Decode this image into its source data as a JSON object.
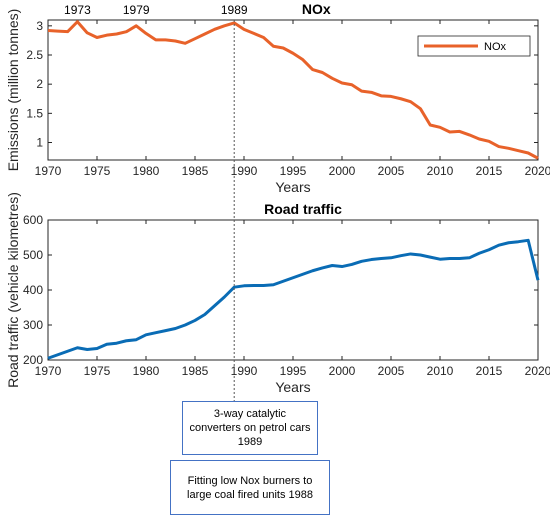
{
  "chart_data": [
    {
      "type": "line",
      "title": "NOx",
      "xlabel": "Years",
      "ylabel": "Emissions (million tonnes)",
      "xlim": [
        1970,
        2020
      ],
      "ylim": [
        0.7,
        3.1
      ],
      "xticks": [
        1970,
        1975,
        1980,
        1985,
        1990,
        1995,
        2000,
        2005,
        2010,
        2015,
        2020
      ],
      "yticks": [
        1,
        1.5,
        2,
        2.5,
        3
      ],
      "ytick_labels": [
        "1",
        "1.5",
        "2",
        "2.5",
        "3"
      ],
      "legend": "top-right",
      "grid": false,
      "color": "#e8622a",
      "annotations": [
        {
          "label": "1973",
          "x": 1973
        },
        {
          "label": "1979",
          "x": 1979
        },
        {
          "label": "1989",
          "x": 1989
        }
      ],
      "series": [
        {
          "name": "NOx",
          "x": [
            1970,
            1971,
            1972,
            1973,
            1974,
            1975,
            1976,
            1977,
            1978,
            1979,
            1980,
            1981,
            1982,
            1983,
            1984,
            1985,
            1986,
            1987,
            1988,
            1989,
            1990,
            1991,
            1992,
            1993,
            1994,
            1995,
            1996,
            1997,
            1998,
            1999,
            2000,
            2001,
            2002,
            2003,
            2004,
            2005,
            2006,
            2007,
            2008,
            2009,
            2010,
            2011,
            2012,
            2013,
            2014,
            2015,
            2016,
            2017,
            2018,
            2019,
            2020
          ],
          "values": [
            2.92,
            2.91,
            2.9,
            3.07,
            2.88,
            2.8,
            2.84,
            2.86,
            2.9,
            3.0,
            2.87,
            2.76,
            2.76,
            2.74,
            2.7,
            2.78,
            2.86,
            2.94,
            3.0,
            3.05,
            2.94,
            2.87,
            2.8,
            2.65,
            2.62,
            2.53,
            2.42,
            2.25,
            2.2,
            2.1,
            2.02,
            1.99,
            1.88,
            1.86,
            1.8,
            1.79,
            1.75,
            1.7,
            1.58,
            1.3,
            1.26,
            1.18,
            1.19,
            1.13,
            1.06,
            1.02,
            0.93,
            0.9,
            0.86,
            0.82,
            0.73
          ]
        }
      ]
    },
    {
      "type": "line",
      "title": "Road traffic",
      "xlabel": "Years",
      "ylabel": "Road traffic (vehicle kilometres)",
      "xlim": [
        1970,
        2020
      ],
      "ylim": [
        200,
        600
      ],
      "xticks": [
        1970,
        1975,
        1980,
        1985,
        1990,
        1995,
        2000,
        2005,
        2010,
        2015,
        2020
      ],
      "yticks": [
        200,
        300,
        400,
        500,
        600
      ],
      "ytick_labels": [
        "200",
        "300",
        "400",
        "500",
        "600"
      ],
      "grid": false,
      "color": "#0a6cb5",
      "series": [
        {
          "x": [
            1970,
            1971,
            1972,
            1973,
            1974,
            1975,
            1976,
            1977,
            1978,
            1979,
            1980,
            1981,
            1982,
            1983,
            1984,
            1985,
            1986,
            1987,
            1988,
            1989,
            1990,
            1991,
            1992,
            1993,
            1994,
            1995,
            1996,
            1997,
            1998,
            1999,
            2000,
            2001,
            2002,
            2003,
            2004,
            2005,
            2006,
            2007,
            2008,
            2009,
            2010,
            2011,
            2012,
            2013,
            2014,
            2015,
            2016,
            2017,
            2018,
            2019,
            2020
          ],
          "values": [
            205,
            215,
            225,
            235,
            230,
            233,
            245,
            248,
            255,
            258,
            272,
            278,
            284,
            290,
            300,
            313,
            330,
            355,
            380,
            408,
            412,
            413,
            413,
            415,
            425,
            435,
            445,
            455,
            463,
            470,
            467,
            473,
            482,
            487,
            490,
            492,
            498,
            503,
            500,
            494,
            488,
            490,
            490,
            492,
            505,
            515,
            528,
            535,
            538,
            542,
            428
          ]
        }
      ]
    }
  ],
  "marker_year": 1989,
  "notes": [
    "3-way catalytic converters on petrol cars 1989",
    "Fitting low Nox burners to large coal fired units 1988"
  ]
}
